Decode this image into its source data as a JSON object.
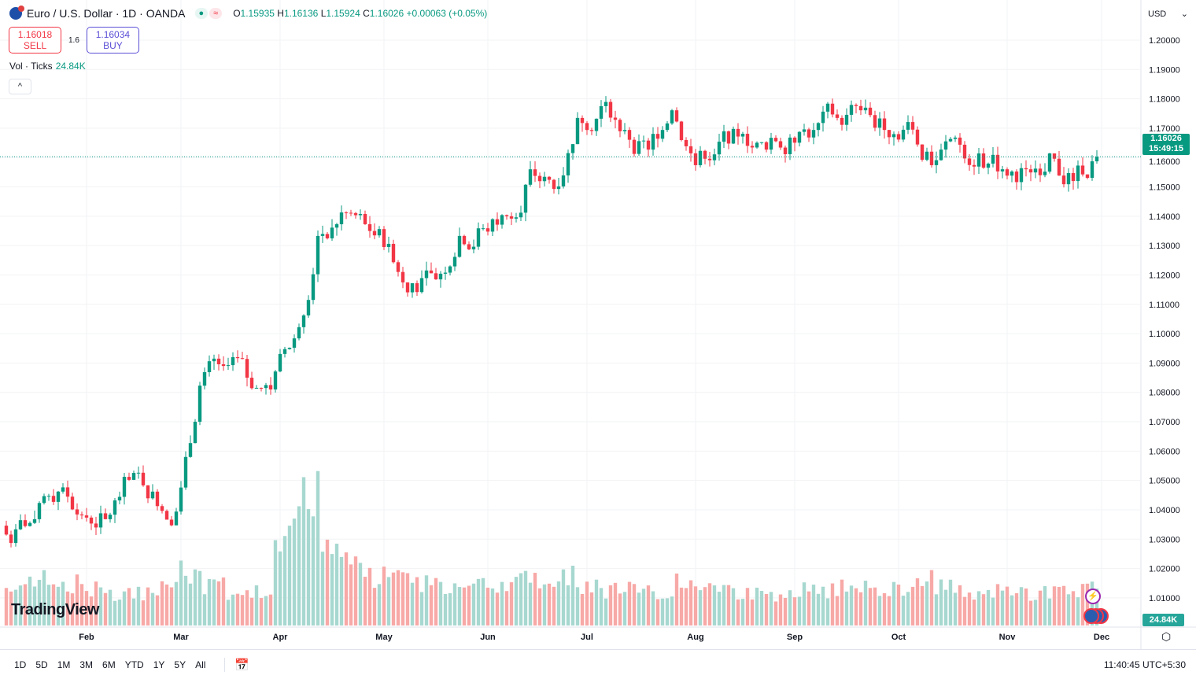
{
  "header": {
    "symbol": "Euro / U.S. Dollar · 1D · OANDA",
    "open_label": "O",
    "open": "1.15935",
    "high_label": "H",
    "high": "1.16136",
    "low_label": "L",
    "low": "1.15924",
    "close_label": "C",
    "close": "1.16026",
    "change": "+0.00063 (+0.05%)",
    "market_status_icon": "green-dot",
    "data_icon": "≈"
  },
  "trade": {
    "sell_price": "1.16018",
    "sell_label": "SELL",
    "spread": "1.6",
    "buy_price": "1.16034",
    "buy_label": "BUY"
  },
  "volume": {
    "label": "Vol · Ticks",
    "value": "24.84K"
  },
  "collapse_icon": "^",
  "currency": {
    "label": "USD",
    "chevron": "⌄"
  },
  "last_price": {
    "price": "1.16026",
    "countdown": "15:49:15"
  },
  "volume_tag": "24.84K",
  "logo": "TradingView",
  "ranges": [
    "1D",
    "5D",
    "1M",
    "3M",
    "6M",
    "YTD",
    "1Y",
    "5Y",
    "All"
  ],
  "clock": "11:40:45 UTC+5:30",
  "colors": {
    "up": "#089981",
    "down": "#f23645",
    "vol_up": "#a7d8d0",
    "vol_down": "#f7a9a7"
  },
  "chart_data": {
    "type": "candlestick",
    "price_axis": {
      "ticks": [
        "1.20000",
        "1.19000",
        "1.18000",
        "1.17000",
        "1.16000",
        "1.15000",
        "1.14000",
        "1.13000",
        "1.12000",
        "1.11000",
        "1.10000",
        "1.09000",
        "1.08000",
        "1.07000",
        "1.06000",
        "1.05000",
        "1.04000",
        "1.03000",
        "1.02000",
        "1.01000"
      ],
      "ylim": [
        1.0085,
        1.2
      ]
    },
    "time_axis": {
      "ticks": [
        "Feb",
        "Mar",
        "Apr",
        "May",
        "Jun",
        "Jul",
        "Aug",
        "Sep",
        "Oct",
        "Nov",
        "Dec"
      ]
    },
    "grid": true,
    "weekly": [
      [
        "Jan 10",
        1.0287,
        29
      ],
      [
        "Jan 17",
        1.0368,
        27
      ],
      [
        "Jan 24",
        1.0462,
        30
      ],
      [
        "Jan 31",
        1.0381,
        28
      ],
      [
        "Feb 7",
        1.0368,
        24
      ],
      [
        "Feb 14",
        1.0502,
        22
      ],
      [
        "Feb 21",
        1.0462,
        22
      ],
      [
        "Feb 28",
        1.0394,
        26
      ],
      [
        "Mar 7",
        1.0823,
        36
      ],
      [
        "Mar 14",
        1.089,
        26
      ],
      [
        "Mar 21",
        1.085,
        22
      ],
      [
        "Mar 28",
        1.081,
        22
      ],
      [
        "Apr 4",
        1.0984,
        60
      ],
      [
        "Apr 11",
        1.1333,
        85
      ],
      [
        "Apr 18",
        1.1413,
        52
      ],
      [
        "Apr 25",
        1.1373,
        40
      ],
      [
        "May 2",
        1.1306,
        32
      ],
      [
        "May 9",
        1.1172,
        36
      ],
      [
        "May 16",
        1.1185,
        30
      ],
      [
        "May 23",
        1.1333,
        28
      ],
      [
        "May 30",
        1.1359,
        28
      ],
      [
        "Jun 6",
        1.14,
        26
      ],
      [
        "Jun 13",
        1.156,
        32
      ],
      [
        "Jun 20",
        1.1493,
        30
      ],
      [
        "Jun 27",
        1.1735,
        34
      ],
      [
        "Jul 4",
        1.1775,
        28
      ],
      [
        "Jul 11",
        1.1694,
        24
      ],
      [
        "Jul 18",
        1.1627,
        24
      ],
      [
        "Jul 25",
        1.1761,
        22
      ],
      [
        "Aug 1",
        1.1574,
        32
      ],
      [
        "Aug 8",
        1.1654,
        24
      ],
      [
        "Aug 15",
        1.1681,
        22
      ],
      [
        "Aug 22",
        1.1627,
        22
      ],
      [
        "Aug 29",
        1.1668,
        20
      ],
      [
        "Sep 5",
        1.1694,
        24
      ],
      [
        "Sep 12",
        1.1735,
        24
      ],
      [
        "Sep 19",
        1.1761,
        28
      ],
      [
        "Sep 26",
        1.1694,
        26
      ],
      [
        "Oct 3",
        1.1721,
        26
      ],
      [
        "Oct 10",
        1.1574,
        30
      ],
      [
        "Oct 17",
        1.1668,
        26
      ],
      [
        "Oct 24",
        1.1614,
        22
      ],
      [
        "Oct 31",
        1.156,
        24
      ],
      [
        "Nov 7",
        1.156,
        22
      ],
      [
        "Nov 14",
        1.1614,
        22
      ],
      [
        "Nov 21",
        1.152,
        24
      ],
      [
        "Nov 28",
        1.16026,
        24.84
      ]
    ],
    "weekly_fields": [
      "week_ending",
      "close",
      "volume_k"
    ],
    "last_close": 1.16026
  }
}
